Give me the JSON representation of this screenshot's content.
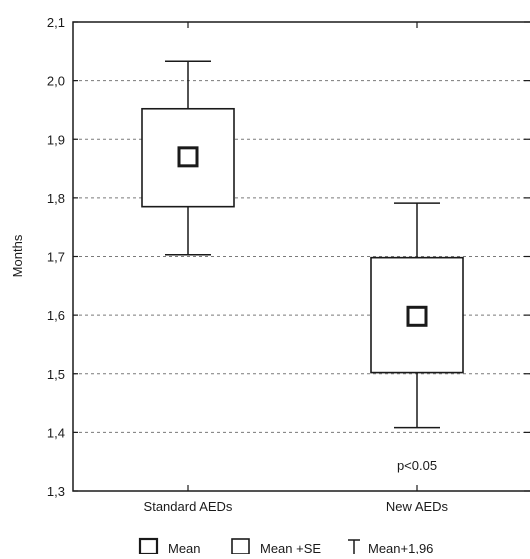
{
  "chart_data": {
    "type": "box",
    "ylabel": "Months",
    "ylim": [
      1.3,
      2.1
    ],
    "yticks": [
      "1,3",
      "1,4",
      "1,5",
      "1,6",
      "1,7",
      "1,8",
      "1,9",
      "2,0",
      "2,1"
    ],
    "ytick_values": [
      1.3,
      1.4,
      1.5,
      1.6,
      1.7,
      1.8,
      1.9,
      2.0,
      2.1
    ],
    "grid": true,
    "categories": [
      "Standard AEDs",
      "New AEDs"
    ],
    "series": [
      {
        "category": "Standard AEDs",
        "mean": 1.87,
        "se_low": 1.785,
        "se_high": 1.952,
        "ci_low": 1.703,
        "ci_high": 2.033
      },
      {
        "category": "New AEDs",
        "mean": 1.598,
        "se_low": 1.502,
        "se_high": 1.698,
        "ci_low": 1.408,
        "ci_high": 1.791
      }
    ],
    "annotation": "p<0.05",
    "legend": {
      "position": "bottom",
      "items": [
        {
          "label": "Mean",
          "icon": "mean-square-icon"
        },
        {
          "label": "Mean +SE",
          "icon": "se-box-icon"
        },
        {
          "label": "Mean+1,96",
          "icon": "whisker-icon"
        }
      ]
    }
  }
}
